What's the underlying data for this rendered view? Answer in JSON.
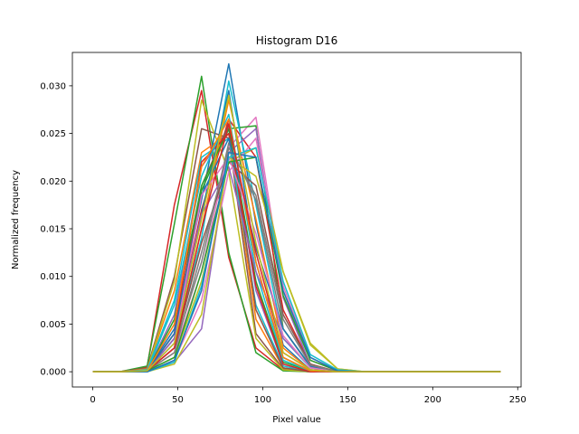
{
  "chart_data": {
    "type": "line",
    "title": "Histogram D16",
    "xlabel": "Pixel value",
    "ylabel": "Normalized frequency",
    "xlim": [
      -12,
      252
    ],
    "ylim": [
      -0.0016,
      0.0335
    ],
    "xticks": [
      0,
      50,
      100,
      150,
      200,
      250
    ],
    "xtick_labels": [
      "0",
      "50",
      "100",
      "150",
      "200",
      "250"
    ],
    "yticks": [
      0.0,
      0.005,
      0.01,
      0.015,
      0.02,
      0.025,
      0.03
    ],
    "ytick_labels": [
      "0.000",
      "0.005",
      "0.010",
      "0.015",
      "0.020",
      "0.025",
      "0.030"
    ],
    "grid": false,
    "legend": "none",
    "x": [
      0,
      16,
      32,
      48,
      64,
      80,
      96,
      112,
      128,
      144,
      160,
      176,
      192,
      208,
      224,
      240
    ],
    "series": [
      {
        "color": "#d62728",
        "values": [
          0,
          0,
          0.0005,
          0.0175,
          0.0295,
          0.012,
          0.0025,
          0.0002,
          0,
          0,
          0,
          0,
          0,
          0,
          0,
          0
        ]
      },
      {
        "color": "#2ca02c",
        "values": [
          0,
          0,
          0.0006,
          0.0155,
          0.031,
          0.0125,
          0.002,
          0.0001,
          0,
          0,
          0,
          0,
          0,
          0,
          0,
          0
        ]
      },
      {
        "color": "#8c564b",
        "values": [
          0,
          0,
          0.0004,
          0.01,
          0.0255,
          0.0245,
          0.004,
          0.0003,
          0,
          0,
          0,
          0,
          0,
          0,
          0,
          0
        ]
      },
      {
        "color": "#ff7f0e",
        "values": [
          0,
          0,
          0.0003,
          0.0085,
          0.023,
          0.025,
          0.0055,
          0.0004,
          0,
          0,
          0,
          0,
          0,
          0,
          0,
          0
        ]
      },
      {
        "color": "#bcbd22",
        "values": [
          0,
          0,
          0.0002,
          0.0095,
          0.0285,
          0.021,
          0.0035,
          0.0002,
          0,
          0,
          0,
          0,
          0,
          0,
          0,
          0
        ]
      },
      {
        "color": "#17becf",
        "values": [
          0,
          0,
          0.0002,
          0.0075,
          0.0225,
          0.0245,
          0.007,
          0.0006,
          0,
          0,
          0,
          0,
          0,
          0,
          0,
          0
        ]
      },
      {
        "color": "#9467bd",
        "values": [
          0,
          0,
          0.0001,
          0.006,
          0.0215,
          0.0255,
          0.0085,
          0.0008,
          0,
          0,
          0,
          0,
          0,
          0,
          0,
          0
        ]
      },
      {
        "color": "#1f77b4",
        "values": [
          0,
          0,
          0.0001,
          0.0045,
          0.018,
          0.0323,
          0.0155,
          0.0028,
          0.0002,
          0,
          0,
          0,
          0,
          0,
          0,
          0
        ]
      },
      {
        "color": "#e377c2",
        "values": [
          0,
          0,
          0.0001,
          0.002,
          0.0105,
          0.0235,
          0.0267,
          0.0085,
          0.0012,
          0.0001,
          0,
          0,
          0,
          0,
          0,
          0
        ]
      },
      {
        "color": "#bcbd22",
        "values": [
          0,
          0,
          0.0001,
          0.0015,
          0.0095,
          0.022,
          0.0235,
          0.0105,
          0.003,
          0.0003,
          0,
          0,
          0,
          0,
          0,
          0
        ]
      },
      {
        "color": "#2ca02c",
        "values": [
          0,
          0,
          0.0001,
          0.004,
          0.019,
          0.0255,
          0.0258,
          0.0045,
          0.0006,
          0,
          0,
          0,
          0,
          0,
          0,
          0
        ]
      },
      {
        "color": "#d62728",
        "values": [
          0,
          0,
          0.0001,
          0.0035,
          0.017,
          0.0265,
          0.0225,
          0.0065,
          0.0008,
          0,
          0,
          0,
          0,
          0,
          0,
          0
        ]
      },
      {
        "color": "#17becf",
        "values": [
          0,
          0,
          0.0001,
          0.003,
          0.014,
          0.0305,
          0.0175,
          0.0035,
          0.0004,
          0,
          0,
          0,
          0,
          0,
          0,
          0
        ]
      },
      {
        "color": "#8c564b",
        "values": [
          0,
          0,
          0.0001,
          0.004,
          0.0195,
          0.026,
          0.0065,
          0.0004,
          0,
          0,
          0,
          0,
          0,
          0,
          0,
          0
        ]
      },
      {
        "color": "#9467bd",
        "values": [
          0,
          0,
          0,
          0.001,
          0.0045,
          0.023,
          0.0255,
          0.0078,
          0.0007,
          0,
          0,
          0,
          0,
          0,
          0,
          0
        ]
      },
      {
        "color": "#ff7f0e",
        "values": [
          0,
          0,
          0.0001,
          0.0025,
          0.015,
          0.0285,
          0.016,
          0.0025,
          0.0002,
          0,
          0,
          0,
          0,
          0,
          0,
          0
        ]
      },
      {
        "color": "#1f77b4",
        "values": [
          0,
          0,
          0.0001,
          0.0035,
          0.0165,
          0.0295,
          0.0115,
          0.0015,
          0.0001,
          0,
          0,
          0,
          0,
          0,
          0,
          0
        ]
      },
      {
        "color": "#e377c2",
        "values": [
          0,
          0,
          0,
          0.0012,
          0.0075,
          0.021,
          0.0245,
          0.009,
          0.0015,
          0.0001,
          0,
          0,
          0,
          0,
          0,
          0
        ]
      },
      {
        "color": "#7f7f7f",
        "values": [
          0,
          0,
          0.0001,
          0.0025,
          0.0115,
          0.024,
          0.018,
          0.0045,
          0.0005,
          0,
          0,
          0,
          0,
          0,
          0,
          0
        ]
      },
      {
        "color": "#2ca02c",
        "values": [
          0,
          0,
          0.0001,
          0.0055,
          0.0195,
          0.0255,
          0.0095,
          0.001,
          0.0001,
          0,
          0,
          0,
          0,
          0,
          0,
          0
        ]
      },
      {
        "color": "#d62728",
        "values": [
          0,
          0,
          0.0001,
          0.004,
          0.022,
          0.025,
          0.009,
          0.0008,
          0,
          0,
          0,
          0,
          0,
          0,
          0,
          0
        ]
      },
      {
        "color": "#17becf",
        "values": [
          0,
          0,
          0.0001,
          0.007,
          0.0205,
          0.027,
          0.0105,
          0.0012,
          0.0001,
          0,
          0,
          0,
          0,
          0,
          0,
          0
        ]
      },
      {
        "color": "#bcbd22",
        "values": [
          0,
          0,
          0,
          0.0008,
          0.006,
          0.0225,
          0.0205,
          0.0105,
          0.0028,
          0.0003,
          0,
          0,
          0,
          0,
          0,
          0
        ]
      },
      {
        "color": "#9467bd",
        "values": [
          0,
          0,
          0.0001,
          0.0035,
          0.0165,
          0.0215,
          0.0105,
          0.0035,
          0.0005,
          0,
          0,
          0,
          0,
          0,
          0,
          0
        ]
      },
      {
        "color": "#1f77b4",
        "values": [
          0,
          0,
          0.0001,
          0.004,
          0.0185,
          0.0245,
          0.013,
          0.0045,
          0.0006,
          0,
          0,
          0,
          0,
          0,
          0,
          0
        ]
      },
      {
        "color": "#8c564b",
        "values": [
          0,
          0,
          0.0001,
          0.0025,
          0.0135,
          0.022,
          0.0195,
          0.006,
          0.0008,
          0,
          0,
          0,
          0,
          0,
          0,
          0
        ]
      },
      {
        "color": "#ff7f0e",
        "values": [
          0,
          0,
          0.0001,
          0.005,
          0.0215,
          0.0265,
          0.0115,
          0.0015,
          0.0001,
          0,
          0,
          0,
          0,
          0,
          0,
          0
        ]
      },
      {
        "color": "#e377c2",
        "values": [
          0,
          0,
          0.0001,
          0.003,
          0.0185,
          0.0225,
          0.0145,
          0.0038,
          0.0004,
          0,
          0,
          0,
          0,
          0,
          0,
          0
        ]
      },
      {
        "color": "#7f7f7f",
        "values": [
          0,
          0,
          0.0001,
          0.002,
          0.0125,
          0.0235,
          0.0185,
          0.0055,
          0.0007,
          0,
          0,
          0,
          0,
          0,
          0,
          0
        ]
      },
      {
        "color": "#2ca02c",
        "values": [
          0,
          0,
          0.0001,
          0.0015,
          0.0105,
          0.022,
          0.0225,
          0.008,
          0.0012,
          0.0001,
          0,
          0,
          0,
          0,
          0,
          0
        ]
      },
      {
        "color": "#17becf",
        "values": [
          0,
          0,
          0,
          0.001,
          0.009,
          0.0225,
          0.0235,
          0.0095,
          0.0018,
          0.0002,
          0,
          0,
          0,
          0,
          0,
          0
        ]
      },
      {
        "color": "#1f77b4",
        "values": [
          0,
          0,
          0,
          0.0012,
          0.0085,
          0.023,
          0.0225,
          0.0085,
          0.0015,
          0.0001,
          0,
          0,
          0,
          0,
          0,
          0
        ]
      },
      {
        "color": "#d62728",
        "values": [
          0,
          0,
          0.0001,
          0.0025,
          0.015,
          0.026,
          0.0125,
          0.002,
          0.0002,
          0,
          0,
          0,
          0,
          0,
          0,
          0
        ]
      },
      {
        "color": "#bcbd22",
        "values": [
          0,
          0,
          0.0001,
          0.003,
          0.016,
          0.029,
          0.0135,
          0.002,
          0.0002,
          0,
          0,
          0,
          0,
          0,
          0,
          0
        ]
      }
    ]
  }
}
